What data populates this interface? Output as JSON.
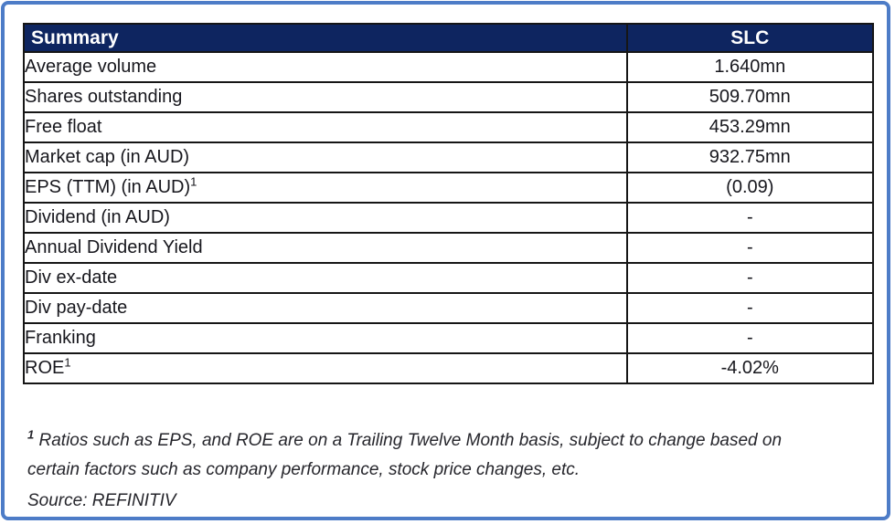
{
  "table": {
    "header": {
      "left": "Summary",
      "right": "SLC"
    },
    "rows": [
      {
        "label": "Average volume",
        "sup": "",
        "value": "1.640mn"
      },
      {
        "label": "Shares outstanding",
        "sup": "",
        "value": "509.70mn"
      },
      {
        "label": "Free float",
        "sup": "",
        "value": "453.29mn"
      },
      {
        "label": "Market cap (in AUD)",
        "sup": "",
        "value": "932.75mn"
      },
      {
        "label": "EPS (TTM) (in AUD)",
        "sup": "1",
        "value": "(0.09)"
      },
      {
        "label": "Dividend (in AUD)",
        "sup": "",
        "value": "-"
      },
      {
        "label": "Annual Dividend Yield",
        "sup": "",
        "value": "-"
      },
      {
        "label": "Div ex-date",
        "sup": "",
        "value": "-"
      },
      {
        "label": "Div pay-date",
        "sup": "",
        "value": "-"
      },
      {
        "label": "Franking",
        "sup": "",
        "value": "-"
      },
      {
        "label": "ROE",
        "sup": "1",
        "value": "-4.02%"
      }
    ]
  },
  "footnote": {
    "sup": "1",
    "text": " Ratios such as EPS, and ROE are on a Trailing Twelve Month basis, subject to change based on certain factors such as company performance, stock price changes, etc.",
    "source": "Source: REFINITIV"
  },
  "colors": {
    "frame_border": "#4d7cc7",
    "header_bg": "#0e2560",
    "header_text": "#ffffff",
    "table_border": "#161616",
    "body_text": "#17171d",
    "footnote_text": "#26262c"
  }
}
